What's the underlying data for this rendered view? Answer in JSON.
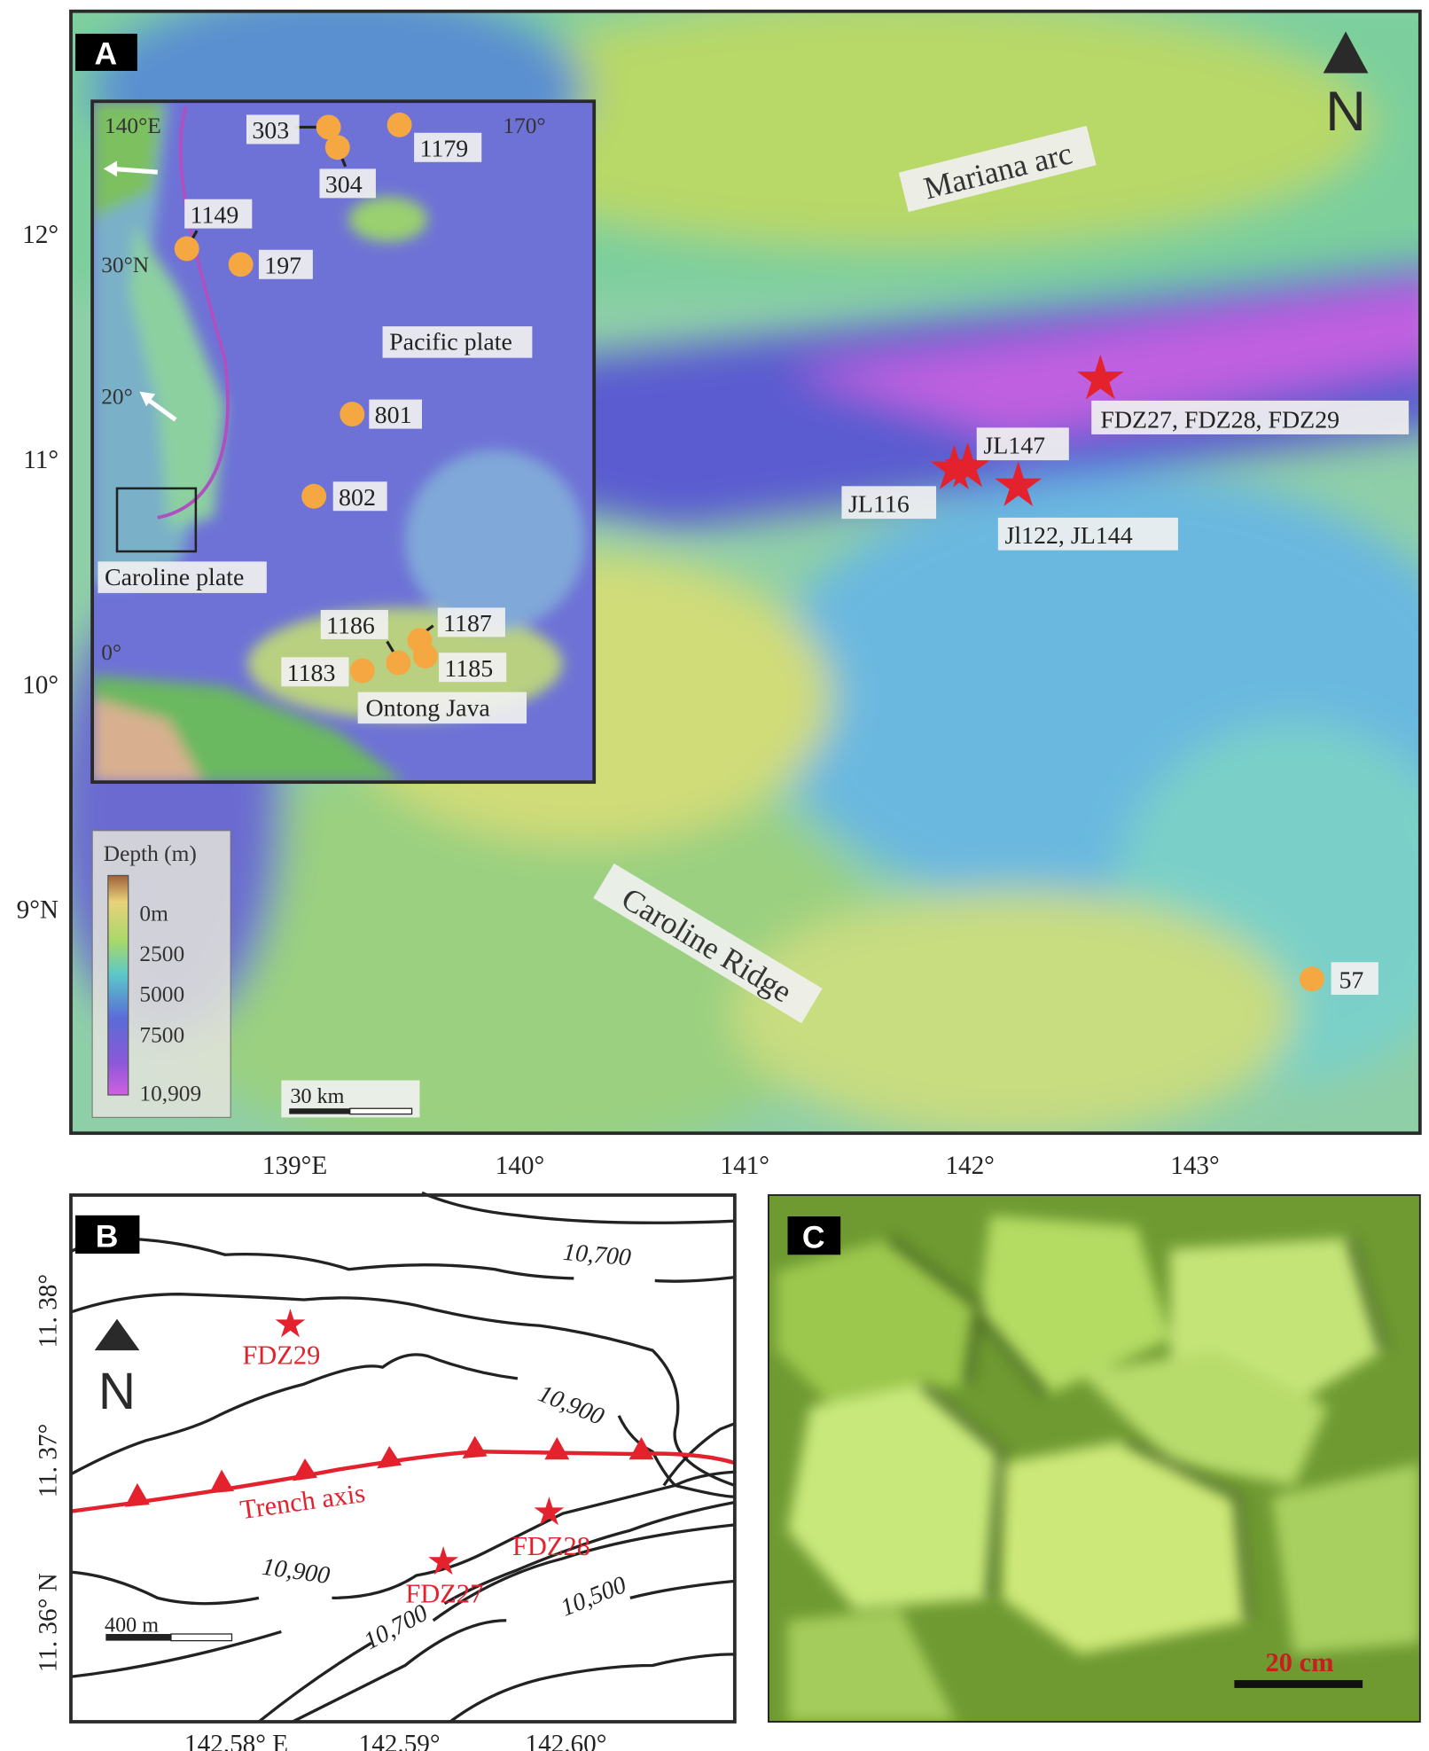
{
  "panels": {
    "a": {
      "label": "A",
      "north": "N",
      "features": {
        "mariana_arc": "Mariana arc",
        "caroline_ridge": "Caroline Ridge"
      },
      "sample_labels": {
        "fdz": "FDZ27, FDZ28, FDZ29",
        "jl147": "JL147",
        "jl116": "JL116",
        "jl122": "Jl122, JL144"
      },
      "site_57": "57",
      "lat_ticks": [
        "12°",
        "11°",
        "10°",
        "9°N"
      ],
      "lon_ticks": [
        "139°E",
        "140°",
        "141°",
        "142°",
        "143°"
      ],
      "legend": {
        "title": "Depth (m)",
        "labels": [
          "0m",
          "2500",
          "5000",
          "7500",
          "10,909"
        ]
      },
      "scale_bar": "30 km",
      "inset": {
        "grid_labels": {
          "lon_140": "140°E",
          "lon_170": "170°",
          "lat_30": "30°N",
          "lat_20": "20°",
          "lat_0": "0°"
        },
        "sites": [
          "303",
          "304",
          "1179",
          "1149",
          "197",
          "801",
          "802",
          "1183",
          "1186",
          "1187",
          "1185"
        ],
        "regions": {
          "pacific": "Pacific plate",
          "caroline": "Caroline plate",
          "ontong": "Ontong Java"
        }
      }
    },
    "b": {
      "label": "B",
      "north": "N",
      "contour_labels": [
        "10,700",
        "10,900",
        "10,900",
        "10,700",
        "10,500"
      ],
      "trench_label": "Trench axis",
      "samples": [
        "FDZ29",
        "FDZ28",
        "FDZ27"
      ],
      "lat_ticks": [
        "11. 38°",
        "11. 37°",
        "11. 36° N"
      ],
      "lon_ticks": [
        "142.58° E",
        "142.59°",
        "142.60°"
      ],
      "scale_bar": "400 m"
    },
    "c": {
      "label": "C",
      "scale_bar": "20 cm"
    }
  },
  "colors": {
    "sample_star": "#e3222e",
    "site_dot": "#f5a742",
    "trench": "#e3222e"
  }
}
